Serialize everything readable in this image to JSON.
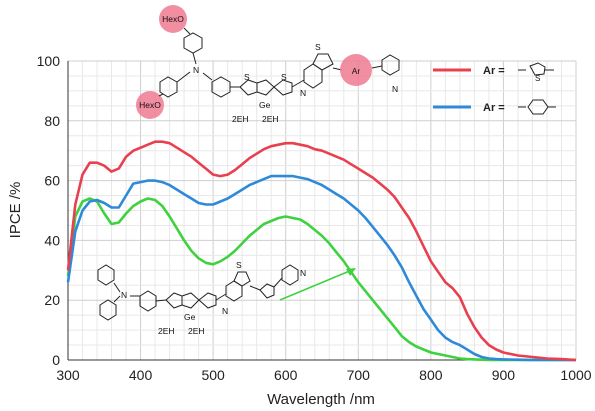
{
  "chart_data": {
    "type": "line",
    "xlabel": "Wavelength /nm",
    "ylabel": "IPCE /%",
    "xlim": [
      300,
      1000
    ],
    "ylim": [
      0,
      100
    ],
    "xticks": [
      300,
      400,
      500,
      600,
      700,
      800,
      900,
      1000
    ],
    "yticks": [
      0,
      20,
      40,
      60,
      80,
      100
    ],
    "grid": true,
    "legend_position": "top-right",
    "series": [
      {
        "name": "Ar =",
        "color": "#e8404f",
        "icon": "thiophene-ring",
        "x": [
          300,
          310,
          320,
          330,
          340,
          350,
          360,
          370,
          380,
          390,
          400,
          410,
          420,
          430,
          440,
          450,
          460,
          470,
          480,
          490,
          500,
          510,
          520,
          530,
          540,
          550,
          560,
          570,
          580,
          590,
          600,
          610,
          620,
          630,
          640,
          650,
          660,
          670,
          680,
          690,
          700,
          710,
          720,
          730,
          740,
          750,
          760,
          770,
          780,
          790,
          800,
          810,
          820,
          830,
          840,
          850,
          860,
          870,
          880,
          890,
          900,
          920,
          940,
          960,
          980,
          1000
        ],
        "values": [
          30,
          52,
          62,
          66,
          66,
          65,
          63,
          64,
          68,
          70,
          71,
          72,
          73,
          73,
          72.5,
          71,
          69.5,
          68,
          66,
          64,
          62,
          61.5,
          62,
          63.5,
          65.5,
          67.5,
          69,
          70.5,
          71.5,
          72,
          72.5,
          72.5,
          72,
          71.5,
          70.5,
          70,
          69,
          68,
          67,
          65.5,
          64,
          62.5,
          61,
          59,
          57,
          54.5,
          51,
          47.5,
          43,
          38,
          33,
          29.5,
          26,
          24,
          21,
          15.5,
          11,
          7.5,
          5,
          3.5,
          2.5,
          1.5,
          1,
          0.5,
          0.3,
          0
        ]
      },
      {
        "name": "Ar =",
        "color": "#2e8ad8",
        "icon": "benzene-ring",
        "x": [
          300,
          310,
          320,
          330,
          340,
          350,
          360,
          370,
          380,
          390,
          400,
          410,
          420,
          430,
          440,
          450,
          460,
          470,
          480,
          490,
          500,
          510,
          520,
          530,
          540,
          550,
          560,
          570,
          580,
          590,
          600,
          610,
          620,
          630,
          640,
          650,
          660,
          670,
          680,
          690,
          700,
          710,
          720,
          730,
          740,
          750,
          760,
          770,
          780,
          790,
          800,
          810,
          820,
          830,
          840,
          850,
          860,
          870,
          880,
          890,
          900,
          920,
          940,
          960,
          980,
          1000
        ],
        "values": [
          26,
          43,
          50,
          53,
          53.5,
          52.5,
          51,
          51,
          55,
          59,
          59.5,
          60,
          60,
          59.5,
          58.5,
          57,
          55.5,
          54,
          52.5,
          52,
          52,
          53,
          54,
          55.5,
          57,
          58.5,
          59.5,
          60.5,
          61.5,
          61.5,
          61.5,
          61.5,
          61,
          60.5,
          59.5,
          58.5,
          57,
          55.5,
          54,
          52,
          50,
          47.5,
          44.5,
          41.5,
          38.5,
          35,
          31,
          26,
          21.5,
          17,
          13.5,
          10,
          7.5,
          6,
          5,
          3.5,
          2,
          1,
          0.5,
          0.3,
          0.2,
          0.1,
          0,
          0,
          0,
          0
        ]
      },
      {
        "name": "",
        "color": "#3fd13f",
        "icon": "",
        "x": [
          300,
          310,
          320,
          330,
          340,
          350,
          360,
          370,
          380,
          390,
          400,
          410,
          420,
          430,
          440,
          450,
          460,
          470,
          480,
          490,
          500,
          510,
          520,
          530,
          540,
          550,
          560,
          570,
          580,
          590,
          600,
          610,
          620,
          630,
          640,
          650,
          660,
          670,
          680,
          690,
          700,
          710,
          720,
          730,
          740,
          750,
          760,
          770,
          780,
          790,
          800,
          810,
          820,
          830,
          840,
          850,
          860,
          870,
          880,
          890,
          900,
          920,
          940,
          960,
          980,
          1000
        ],
        "values": [
          28,
          48,
          53,
          54,
          53,
          49,
          45.5,
          46,
          49,
          51.5,
          53,
          54,
          53.5,
          51.5,
          48,
          44,
          40,
          36.5,
          34,
          32.5,
          32,
          33,
          34.5,
          36.5,
          39,
          41.5,
          43.5,
          45.5,
          46.5,
          47.5,
          48,
          47.5,
          47,
          45.5,
          43.5,
          41.5,
          39,
          36,
          33,
          29.5,
          26,
          23,
          20,
          17,
          14,
          11,
          8,
          6,
          4.5,
          3.5,
          2.5,
          2,
          1.5,
          1,
          0.5,
          0.3,
          0.2,
          0.1,
          0,
          0,
          0,
          0,
          0,
          0,
          0,
          0
        ]
      }
    ],
    "structure_labels": {
      "hexo_upper": "HexO",
      "hexo_lower": "HexO",
      "n_atom": "N",
      "ar_group": "Ar",
      "ge_atom": "Ge",
      "eh_left": "2EH",
      "eh_right": "2EH",
      "s_atom": "S",
      "n_ring": "N",
      "inset_ge": "Ge",
      "inset_eh_left": "2EH",
      "inset_eh_right": "2EH",
      "inset_n": "N"
    }
  }
}
